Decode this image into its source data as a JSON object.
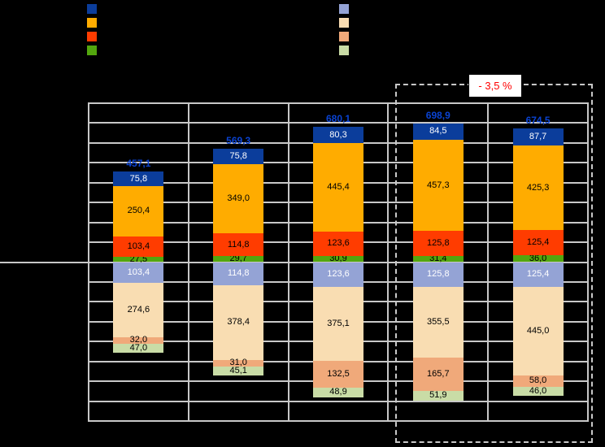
{
  "chart_data": {
    "type": "bar",
    "stacked": true,
    "diverging": true,
    "title": "",
    "xlabel": "",
    "ylabel": "",
    "categories": [
      "",
      "",
      "",
      "",
      ""
    ],
    "axis": {
      "ylim": [
        -800,
        800
      ],
      "grid_rows": 16,
      "grid_cols": 5,
      "tick_labels_visible": false,
      "grid": true
    },
    "totals": [
      "457,1",
      "569,3",
      "680,1",
      "698,9",
      "674,5"
    ],
    "totals_color": "#0A43D2",
    "series_above_baseline": [
      {
        "name": "series-dark-blue",
        "color": "#0B3D9B",
        "label_color": "#FFFFFF",
        "values": [
          "75,8",
          "75,8",
          "80,3",
          "84,5",
          "87,7"
        ]
      },
      {
        "name": "series-orange",
        "color": "#FFAC00",
        "label_color": "#000000",
        "values": [
          "250,4",
          "349,0",
          "445,4",
          "457,3",
          "425,3"
        ]
      },
      {
        "name": "series-red",
        "color": "#FF3C00",
        "label_color": "#000000",
        "values": [
          "103,4",
          "114,8",
          "123,6",
          "125,8",
          "125,4"
        ]
      },
      {
        "name": "series-green",
        "color": "#53A60E",
        "label_color": "#000000",
        "values": [
          "27,5",
          "29,7",
          "30,9",
          "31,4",
          "36,0"
        ]
      }
    ],
    "series_below_baseline": [
      {
        "name": "series-periwinkle",
        "color": "#94A3D5",
        "label_color": "#FFFFFF",
        "values": [
          "103,4",
          "114,8",
          "123,6",
          "125,8",
          "125,4"
        ]
      },
      {
        "name": "series-peach",
        "color": "#F9DDB2",
        "label_color": "#000000",
        "values": [
          "274,6",
          "378,4",
          "375,1",
          "355,5",
          "445,0"
        ]
      },
      {
        "name": "series-salmon",
        "color": "#F0A97A",
        "label_color": "#000000",
        "values": [
          "32,0",
          "31,0",
          "132,5",
          "165,7",
          "58,0"
        ]
      },
      {
        "name": "series-light-green",
        "color": "#C9DCA6",
        "label_color": "#000000",
        "values": [
          "47,0",
          "45,1",
          "48,9",
          "51,9",
          "46,0"
        ]
      }
    ],
    "annotation": {
      "label": "- 3,5 %",
      "color": "#FF0000",
      "box_around_categories": [
        4,
        5
      ]
    },
    "legend": {
      "left_column_series": [
        "series-dark-blue",
        "series-orange",
        "series-red",
        "series-green"
      ],
      "right_column_series": [
        "series-periwinkle",
        "series-peach",
        "series-salmon",
        "series-light-green"
      ],
      "labels_visible": false
    }
  }
}
